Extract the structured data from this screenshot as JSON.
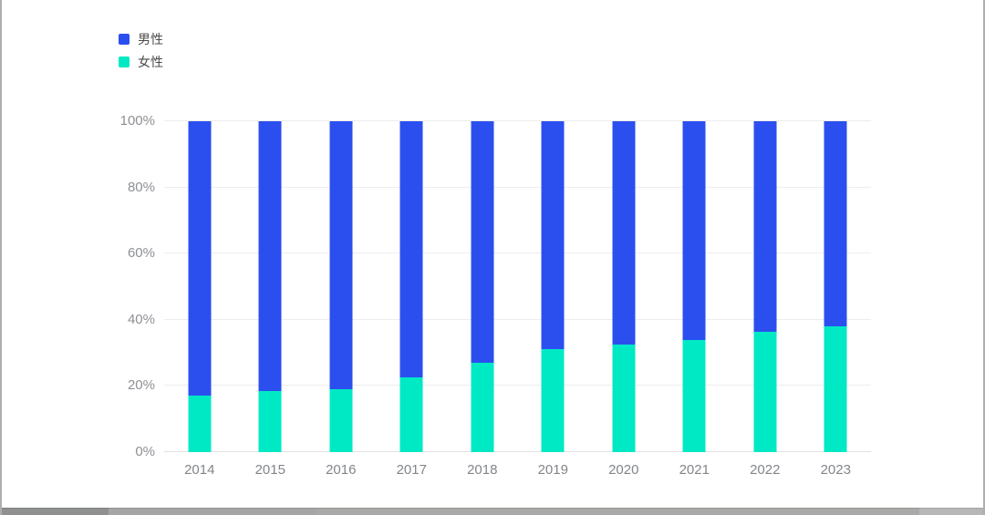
{
  "legend": {
    "position": "top-left"
  },
  "chart_data": {
    "type": "bar",
    "stacked": true,
    "percent_stacked": true,
    "title": "",
    "xlabel": "",
    "ylabel": "",
    "categories": [
      "2014",
      "2015",
      "2016",
      "2017",
      "2018",
      "2019",
      "2020",
      "2021",
      "2022",
      "2023"
    ],
    "series": [
      {
        "name": "男性",
        "color": "#2b4fef",
        "values": [
          83,
          81.5,
          81,
          77.5,
          73,
          69,
          67.5,
          66,
          63.5,
          62
        ]
      },
      {
        "name": "女性",
        "color": "#00e9c5",
        "values": [
          17,
          18.5,
          19,
          22.5,
          27,
          31,
          32.5,
          34,
          36.5,
          38
        ]
      }
    ],
    "ylim": [
      0,
      100
    ],
    "ytick_values": [
      0,
      20,
      40,
      60,
      80,
      100
    ],
    "ytick_labels": [
      "0%",
      "20%",
      "40%",
      "60%",
      "80%",
      "100%"
    ],
    "grid": true,
    "legend_position": "top-left",
    "legend_entries": [
      "男性",
      "女性"
    ]
  }
}
